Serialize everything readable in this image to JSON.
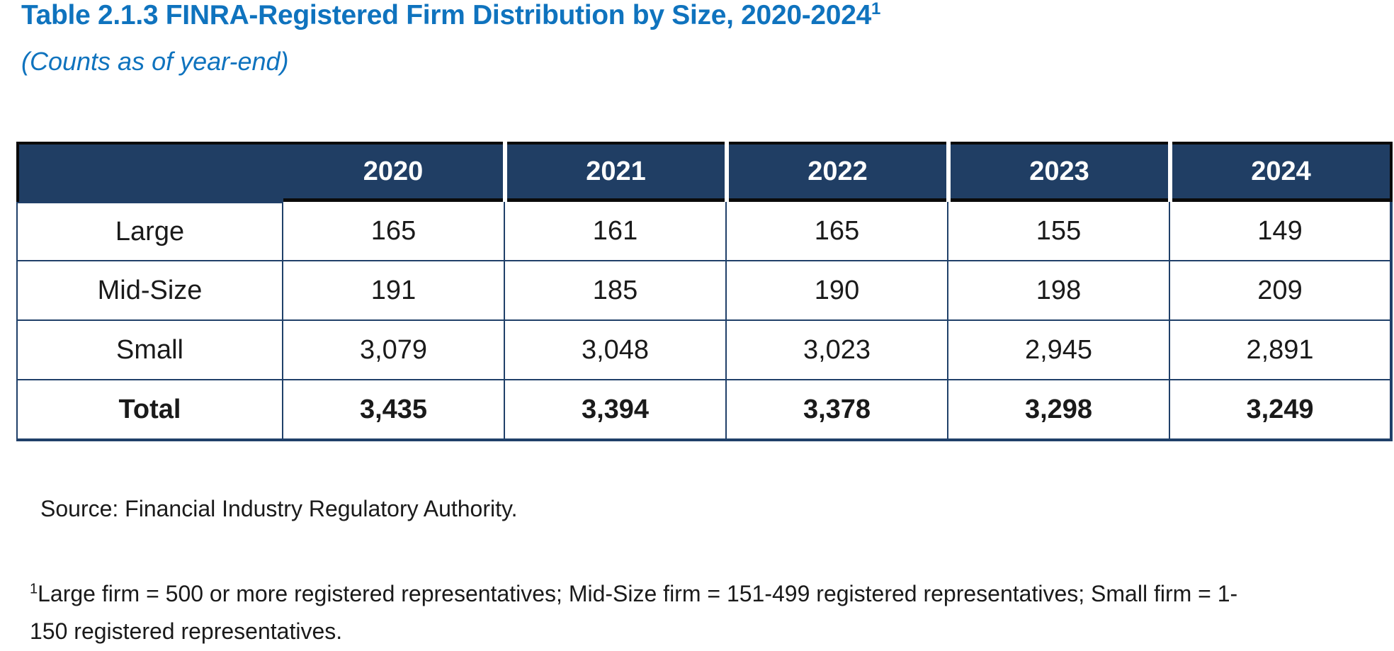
{
  "title": {
    "text": "Table 2.1.3 FINRA-Registered Firm Distribution by Size, 2020-2024",
    "superscript": "1"
  },
  "subtitle": "(Counts as of year-end)",
  "chart_data": {
    "type": "table",
    "title": "Table 2.1.3 FINRA-Registered Firm Distribution by Size, 2020-2024",
    "subtitle": "(Counts as of year-end)",
    "columns": [
      "",
      "2020",
      "2021",
      "2022",
      "2023",
      "2024"
    ],
    "rows": [
      {
        "label": "Large",
        "values": [
          "165",
          "161",
          "165",
          "155",
          "149"
        ]
      },
      {
        "label": "Mid-Size",
        "values": [
          "191",
          "185",
          "190",
          "198",
          "209"
        ]
      },
      {
        "label": "Small",
        "values": [
          "3,079",
          "3,048",
          "3,023",
          "2,945",
          "2,891"
        ]
      },
      {
        "label": "Total",
        "values": [
          "3,435",
          "3,394",
          "3,378",
          "3,298",
          "3,249"
        ],
        "emphasis": "bold"
      }
    ],
    "layout_hints": {
      "header_style": "navy-filled with white bold year labels, black outline, white gaps between header cells",
      "first_header_cell": "empty, merged with 2020 column"
    }
  },
  "source": "Source: Financial Industry Regulatory Authority.",
  "footnote": {
    "superscript": "1",
    "line1": "Large firm = 500 or more registered representatives; Mid-Size firm = 151-499 registered representatives; Small firm = 1-",
    "line2": "150 registered representatives."
  },
  "colors": {
    "title_blue": "#0F73BE",
    "header_bg": "#203E64",
    "header_border": "#0A0A0A",
    "table_border": "#204069",
    "header_text": "#FFFFFF",
    "body_text": "#1A1A1A"
  }
}
